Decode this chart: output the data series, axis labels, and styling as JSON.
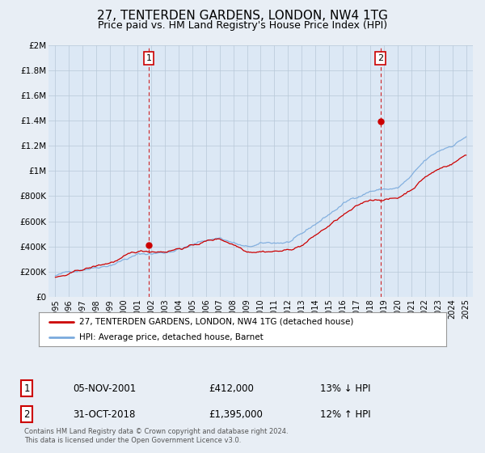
{
  "title": "27, TENTERDEN GARDENS, LONDON, NW4 1TG",
  "subtitle": "Price paid vs. HM Land Registry's House Price Index (HPI)",
  "title_fontsize": 11,
  "subtitle_fontsize": 9,
  "bg_color": "#e8eef5",
  "plot_bg_color": "#dce8f5",
  "grid_color": "#b8c8d8",
  "line1_color": "#cc0000",
  "line2_color": "#7aaadd",
  "marker_color": "#cc0000",
  "dashed_line_color": "#cc0000",
  "legend1": "27, TENTERDEN GARDENS, LONDON, NW4 1TG (detached house)",
  "legend2": "HPI: Average price, detached house, Barnet",
  "annotation1": [
    "1",
    "05-NOV-2001",
    "£412,000",
    "13% ↓ HPI"
  ],
  "annotation2": [
    "2",
    "31-OCT-2018",
    "£1,395,000",
    "12% ↑ HPI"
  ],
  "footnote": "Contains HM Land Registry data © Crown copyright and database right 2024.\nThis data is licensed under the Open Government Licence v3.0.",
  "ylim": [
    0,
    2000000
  ],
  "yticks": [
    0,
    200000,
    400000,
    600000,
    800000,
    1000000,
    1200000,
    1400000,
    1600000,
    1800000,
    2000000
  ],
  "ytick_labels": [
    "£0",
    "£200K",
    "£400K",
    "£600K",
    "£800K",
    "£1M",
    "£1.2M",
    "£1.4M",
    "£1.6M",
    "£1.8M",
    "£2M"
  ],
  "years": [
    1995,
    1996,
    1997,
    1998,
    1999,
    2000,
    2001,
    2002,
    2003,
    2004,
    2005,
    2006,
    2007,
    2008,
    2009,
    2010,
    2011,
    2012,
    2013,
    2014,
    2015,
    2016,
    2017,
    2018,
    2019,
    2020,
    2021,
    2022,
    2023,
    2024,
    2025
  ],
  "hpi_annual": [
    168000,
    190000,
    228000,
    255000,
    285000,
    332000,
    368000,
    375000,
    385000,
    420000,
    447000,
    485000,
    510000,
    472000,
    428000,
    445000,
    450000,
    458000,
    500000,
    580000,
    660000,
    740000,
    800000,
    855000,
    870000,
    875000,
    960000,
    1070000,
    1140000,
    1195000,
    1270000
  ],
  "price_annual": [
    155000,
    172000,
    205000,
    230000,
    258000,
    298000,
    330000,
    338000,
    348000,
    378000,
    400000,
    435000,
    455000,
    418000,
    375000,
    390000,
    395000,
    400000,
    443000,
    520000,
    595000,
    672000,
    728000,
    780000,
    795000,
    800000,
    875000,
    980000,
    1040000,
    1090000,
    1160000
  ],
  "marker1_year": 2001,
  "marker1_price": 412000,
  "marker2_year": 2018,
  "marker2_price": 1395000,
  "xstart": 1995,
  "xend": 2025
}
